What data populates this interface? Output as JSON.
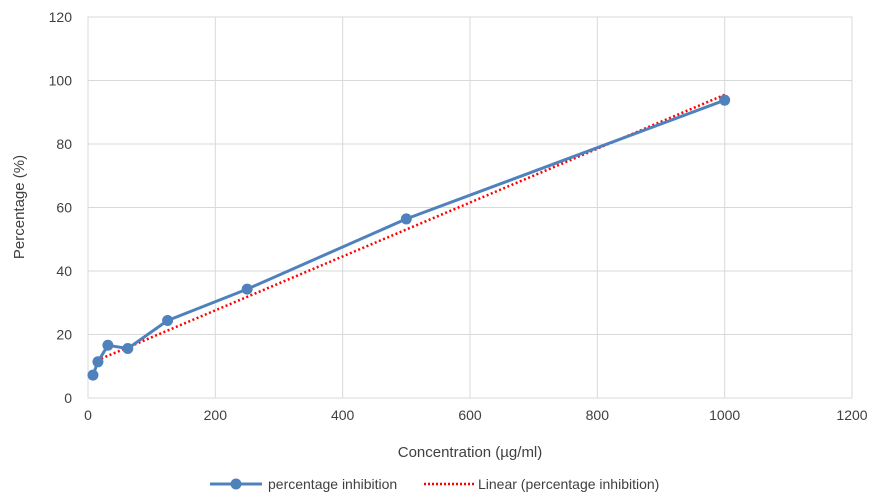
{
  "chart_data": {
    "type": "scatter",
    "title": "",
    "xlabel": "Concentration (µg/ml)",
    "ylabel": "Percentage (%)",
    "xlim": [
      0,
      1200
    ],
    "ylim": [
      0,
      120
    ],
    "x_ticks": [
      0,
      200,
      400,
      600,
      800,
      1000,
      1200
    ],
    "y_ticks": [
      0,
      20,
      40,
      60,
      80,
      100,
      120
    ],
    "x_tick_labels": [
      "0",
      "200",
      "400",
      "600",
      "800",
      "1000",
      "1200"
    ],
    "y_tick_labels": [
      "0",
      "20",
      "40",
      "60",
      "80",
      "100",
      "120"
    ],
    "grid": true,
    "legend_position": "bottom",
    "series": [
      {
        "name": "percentage inhibition",
        "style": "line-with-markers",
        "color": "#4f81bd",
        "x": [
          7.8,
          15.6,
          31.25,
          62.5,
          125,
          250,
          500,
          1000
        ],
        "y": [
          7.2,
          11.4,
          16.6,
          15.6,
          24.4,
          34.3,
          56.4,
          93.8
        ]
      },
      {
        "name": "Linear (percentage inhibition)",
        "style": "dotted-trendline",
        "color": "#ff0000",
        "x": [
          7.8,
          1000
        ],
        "y": [
          11.3,
          95.5
        ]
      }
    ]
  }
}
